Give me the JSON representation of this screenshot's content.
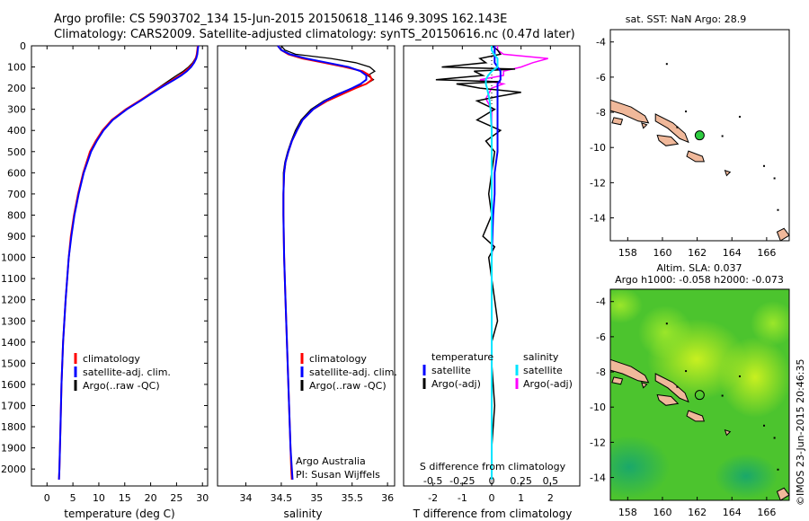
{
  "header": {
    "line1": "Argo profile: CS 5903702_134 15-Jun-2015 20150618_1146 9.309S 162.143E",
    "line2": "Climatology: CARS2009. Satellite-adjusted climatology: synTS_20150616.nc (0.47d later)"
  },
  "colors": {
    "clim": "#ff0000",
    "sat": "#0000ff",
    "argo": "#000000",
    "sat_s": "#00e5ff",
    "argo_s": "#ff00ff",
    "land": "#f0b89a",
    "dot": "#2ecc40"
  },
  "depth_ticks": [
    "0",
    "100",
    "200",
    "300",
    "400",
    "500",
    "600",
    "700",
    "800",
    "900",
    "1000",
    "1100",
    "1200",
    "1300",
    "1400",
    "1500",
    "1600",
    "1700",
    "1800",
    "1900",
    "2000"
  ],
  "chart_data": [
    {
      "type": "line",
      "xlabel": "temperature (deg C)",
      "xticks": [
        "0",
        "5",
        "10",
        "15",
        "20",
        "25",
        "30"
      ],
      "xlim": [
        -3,
        31
      ],
      "ylim": [
        2080,
        0
      ],
      "legend": [
        "climatology",
        "satellite-adj. clim.",
        "Argo(..raw -QC)"
      ],
      "series": [
        {
          "name": "climatology",
          "depth": [
            0,
            20,
            40,
            60,
            80,
            100,
            120,
            140,
            160,
            180,
            200,
            230,
            260,
            300,
            350,
            400,
            450,
            500,
            600,
            700,
            800,
            900,
            1000,
            1200,
            1400,
            1600,
            1800,
            2000,
            2050
          ],
          "values": [
            29.1,
            29.0,
            28.9,
            28.7,
            28.3,
            27.6,
            26.7,
            25.6,
            24.3,
            23.0,
            21.6,
            19.7,
            17.8,
            15.2,
            12.5,
            10.7,
            9.4,
            8.3,
            7.0,
            6.0,
            5.2,
            4.6,
            4.2,
            3.6,
            3.1,
            2.8,
            2.6,
            2.4,
            2.3
          ]
        },
        {
          "name": "satellite-adj. clim.",
          "depth": [
            0,
            20,
            40,
            60,
            80,
            100,
            120,
            140,
            160,
            180,
            200,
            230,
            260,
            300,
            350,
            400,
            450,
            500,
            600,
            700,
            800,
            900,
            1000,
            1200,
            1400,
            1600,
            1800,
            2000,
            2050
          ],
          "values": [
            29.2,
            29.1,
            29.0,
            28.8,
            28.4,
            27.8,
            27.0,
            25.9,
            24.6,
            23.2,
            21.8,
            19.9,
            18.0,
            15.4,
            12.7,
            10.9,
            9.6,
            8.5,
            7.1,
            6.1,
            5.3,
            4.7,
            4.2,
            3.6,
            3.1,
            2.8,
            2.6,
            2.4,
            2.3
          ]
        },
        {
          "name": "Argo(..raw -QC)",
          "depth": [
            0,
            20,
            40,
            60,
            80,
            100,
            120,
            140,
            160,
            180,
            200,
            230,
            260,
            300,
            350,
            400,
            450,
            500,
            600,
            700,
            800,
            900,
            1000,
            1200,
            1400,
            1600,
            1800,
            2000
          ],
          "values": [
            29.2,
            29.1,
            29.0,
            28.6,
            28.1,
            27.3,
            26.3,
            25.0,
            23.8,
            22.6,
            21.4,
            19.6,
            17.9,
            15.3,
            12.6,
            10.8,
            9.5,
            8.4,
            7.0,
            6.0,
            5.3,
            4.7,
            4.2,
            3.6,
            3.1,
            2.8,
            2.6,
            2.4
          ]
        }
      ]
    },
    {
      "type": "line",
      "xlabel": "salinity",
      "xticks": [
        "34",
        "34.5",
        "35",
        "35.5",
        "36"
      ],
      "xlim": [
        33.6,
        36.1
      ],
      "ylim": [
        2080,
        0
      ],
      "legend": [
        "climatology",
        "satellite-adj. clim.",
        "Argo(..raw -QC)"
      ],
      "annotation": [
        "Argo Australia",
        "PI: Susan Wijffels"
      ],
      "series": [
        {
          "name": "climatology",
          "depth": [
            0,
            20,
            40,
            60,
            80,
            100,
            120,
            140,
            160,
            180,
            200,
            230,
            260,
            300,
            350,
            400,
            450,
            500,
            550,
            600,
            700,
            800,
            1000,
            1200,
            1400,
            1600,
            1800,
            1900,
            2000,
            2050
          ],
          "values": [
            34.45,
            34.5,
            34.6,
            34.8,
            35.1,
            35.4,
            35.65,
            35.75,
            35.78,
            35.7,
            35.55,
            35.35,
            35.15,
            34.95,
            34.8,
            34.72,
            34.65,
            34.6,
            34.56,
            34.54,
            34.53,
            34.53,
            34.54,
            34.56,
            34.58,
            34.6,
            34.62,
            34.63,
            34.64,
            34.65
          ]
        },
        {
          "name": "satellite-adj. clim.",
          "depth": [
            0,
            20,
            40,
            60,
            80,
            100,
            120,
            140,
            160,
            180,
            200,
            230,
            260,
            300,
            350,
            400,
            450,
            500,
            550,
            600,
            700,
            800,
            1000,
            1200,
            1400,
            1600,
            1800,
            1900,
            2000,
            2050
          ],
          "values": [
            34.45,
            34.5,
            34.62,
            34.85,
            35.15,
            35.45,
            35.62,
            35.7,
            35.7,
            35.62,
            35.5,
            35.3,
            35.12,
            34.95,
            34.8,
            34.72,
            34.65,
            34.6,
            34.56,
            34.54,
            34.53,
            34.53,
            34.54,
            34.56,
            34.58,
            34.6,
            34.62,
            34.63,
            34.65,
            34.66
          ]
        },
        {
          "name": "Argo(..raw -QC)",
          "depth": [
            0,
            20,
            40,
            60,
            80,
            100,
            120,
            140,
            160,
            180,
            200,
            230,
            260,
            300,
            350,
            400,
            450,
            500,
            550,
            600,
            700,
            800,
            1000,
            1200,
            1400,
            1600,
            1800,
            1900,
            2000
          ],
          "values": [
            34.5,
            34.55,
            34.7,
            35.2,
            35.55,
            35.75,
            35.82,
            35.72,
            35.8,
            35.7,
            35.5,
            35.28,
            35.1,
            34.92,
            34.78,
            34.7,
            34.64,
            34.59,
            34.55,
            34.53,
            34.53,
            34.53,
            34.54,
            34.56,
            34.58,
            34.6,
            34.62,
            34.63,
            34.64
          ]
        }
      ]
    },
    {
      "type": "line",
      "xlabel": "T difference from climatology",
      "xticks": [
        "-2",
        "-1",
        "0",
        "1",
        "2"
      ],
      "xlim": [
        -3,
        3
      ],
      "s_label": "S difference from climatology",
      "s_xticks": [
        "-0.5",
        "-0.25",
        "0",
        "0.25",
        "0.5"
      ],
      "s_xlim": [
        -0.75,
        0.75
      ],
      "ylim": [
        2080,
        0
      ],
      "legend_temperature": [
        "temperature",
        "satellite",
        "Argo(-adj)"
      ],
      "legend_salinity": [
        "salinity",
        "satellite",
        "Argo(-adj)"
      ],
      "series": [
        {
          "name": "satellite",
          "kind": "T",
          "depth": [
            0,
            20,
            40,
            60,
            80,
            100,
            120,
            140,
            160,
            180,
            200,
            250,
            300,
            400,
            500,
            600,
            700,
            800,
            1000,
            1500,
            2050
          ],
          "values": [
            0.1,
            0.1,
            0.1,
            0.1,
            0.1,
            0.2,
            0.3,
            0.3,
            0.3,
            0.2,
            0.2,
            0.2,
            0.2,
            0.2,
            0.2,
            0.1,
            0.1,
            0.05,
            0.0,
            0.0,
            0.0
          ]
        },
        {
          "name": "Argo(-adj)",
          "kind": "T",
          "depth": [
            0,
            20,
            40,
            60,
            80,
            100,
            110,
            120,
            140,
            160,
            170,
            180,
            200,
            220,
            240,
            260,
            300,
            350,
            400,
            450,
            500,
            600,
            700,
            800,
            900,
            950,
            1000,
            1100,
            1200,
            1300,
            1400,
            1500,
            1700,
            1900,
            2000
          ],
          "values": [
            0.0,
            0.2,
            0.3,
            -0.4,
            -0.2,
            -1.7,
            0.8,
            -0.6,
            -0.3,
            -1.9,
            0.3,
            -1.2,
            -0.4,
            1.0,
            0.2,
            -0.5,
            0.1,
            -0.5,
            0.3,
            -0.2,
            0.1,
            0.0,
            -0.1,
            0.0,
            -0.3,
            0.1,
            -0.1,
            0.0,
            0.1,
            0.2,
            0.0,
            0.0,
            0.1,
            0.0,
            0.0
          ]
        },
        {
          "name": "satellite",
          "kind": "S",
          "depth": [
            0,
            20,
            40,
            60,
            80,
            100,
            120,
            140,
            160,
            180,
            200,
            250,
            300,
            400,
            500,
            600,
            800,
            1000,
            1500,
            2050
          ],
          "values": [
            0.0,
            0.0,
            0.02,
            0.05,
            0.05,
            0.05,
            0.0,
            -0.03,
            -0.05,
            -0.05,
            -0.04,
            -0.02,
            -0.01,
            0.0,
            0.0,
            0.0,
            0.0,
            0.0,
            0.0,
            0.0
          ]
        },
        {
          "name": "Argo(-adj)",
          "kind": "S",
          "depth": [
            0,
            20,
            40,
            60,
            80,
            100,
            120,
            140,
            160,
            180,
            200,
            250,
            300,
            400,
            600,
            1000,
            1500,
            2000
          ],
          "values": [
            0.05,
            0.05,
            0.1,
            0.48,
            0.35,
            0.25,
            0.1,
            0.1,
            -0.1,
            0.1,
            0.0,
            -0.05,
            0.0,
            0.0,
            0.0,
            0.0,
            0.0,
            0.0
          ]
        }
      ]
    },
    {
      "type": "map",
      "title": "sat. SST: NaN Argo: 28.9",
      "xticks": [
        "158",
        "160",
        "162",
        "164",
        "166"
      ],
      "yticks": [
        "-4",
        "-6",
        "-8",
        "-10",
        "-12",
        "-14"
      ],
      "xlim": [
        157,
        167.3
      ],
      "ylim": [
        -15.3,
        -3.3
      ],
      "marker": {
        "lon": 162.143,
        "lat": -9.309
      }
    },
    {
      "type": "map",
      "title": "Altim. SLA: 0.037",
      "subtitle": "Argo h1000: -0.058 h2000: -0.073",
      "xticks": [
        "158",
        "160",
        "162",
        "164",
        "166"
      ],
      "yticks": [
        "-4",
        "-6",
        "-8",
        "-10",
        "-12",
        "-14"
      ],
      "xlim": [
        157,
        167.3
      ],
      "ylim": [
        -15.3,
        -3.3
      ],
      "marker": {
        "lon": 162.143,
        "lat": -9.309
      }
    }
  ],
  "footer": {
    "stamp": "©IMOS 23-Jun-2015 20:46:35"
  }
}
